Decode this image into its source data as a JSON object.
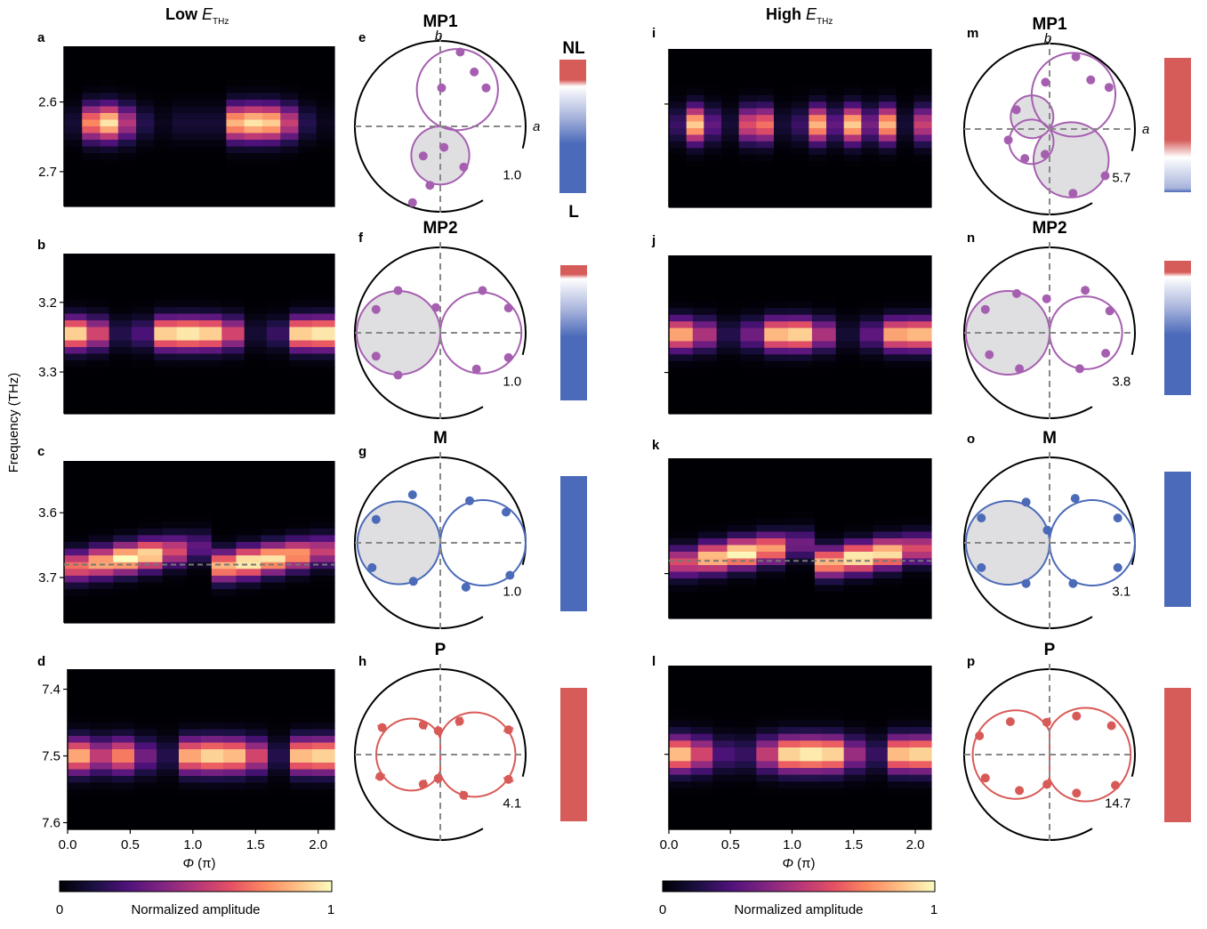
{
  "columns": {
    "low": {
      "prefix": "Low ",
      "symbol": "E",
      "sub": "THz"
    },
    "high": {
      "prefix": "High ",
      "symbol": "E",
      "sub": "THz"
    }
  },
  "ylabel": "Frequency (THz)",
  "xlabel": {
    "symbol": "Φ",
    "unit": " (π)"
  },
  "x_ticks": [
    "0.0",
    "0.5",
    "1.0",
    "1.5",
    "2.0"
  ],
  "x_tick_values": [
    0,
    0.5,
    1.0,
    1.5,
    2.0
  ],
  "xlim": [
    0,
    2.13
  ],
  "colorbar": {
    "min": "0",
    "max": "1",
    "label": "Normalized amplitude"
  },
  "mode_bar_labels": {
    "top": "NL",
    "bottom": "L"
  },
  "colors": {
    "purple": "#a65fb0",
    "blue": "#4b6ab8",
    "red": "#d85a57",
    "fill": "#dfdfe2",
    "bar_blue": "#4b6ab9",
    "bar_red": "#d65c5a"
  },
  "chart_data": [
    {
      "panel": "a",
      "type": "heatmap",
      "column": "low",
      "ylim": [
        2.52,
        2.75
      ],
      "y_ticks": [
        "2.6",
        "2.7"
      ],
      "y_tick_values": [
        2.6,
        2.7
      ],
      "center": 2.63,
      "width": 0.025,
      "modulation": [
        0.1,
        0.75,
        0.95,
        0.5,
        0.15,
        0.05,
        0.1,
        0.1,
        0.1,
        0.85,
        0.95,
        0.9,
        0.55,
        0.15,
        0.05
      ],
      "drift": 0
    },
    {
      "panel": "b",
      "type": "heatmap",
      "column": "low",
      "ylim": [
        3.13,
        3.36
      ],
      "y_ticks": [
        "3.2",
        "3.3"
      ],
      "y_tick_values": [
        3.2,
        3.3
      ],
      "center": 3.245,
      "width": 0.022,
      "modulation": [
        0.95,
        0.6,
        0.15,
        0.25,
        0.95,
        1.0,
        0.95,
        0.6,
        0.1,
        0.2,
        0.95,
        1.0
      ],
      "drift": 0
    },
    {
      "panel": "c",
      "type": "heatmap",
      "column": "low",
      "ylim": [
        3.52,
        3.77
      ],
      "y_ticks": [
        "3.6",
        "3.7"
      ],
      "y_tick_values": [
        3.6,
        3.7
      ],
      "center": 3.665,
      "width": 0.022,
      "modulation": [
        0.7,
        0.85,
        1.0,
        0.95,
        0.6,
        0.3,
        0.85,
        1.0,
        0.95,
        0.8,
        0.55
      ],
      "drift": -0.035,
      "dashed_y": 3.68
    },
    {
      "panel": "d",
      "type": "heatmap",
      "column": "low",
      "ylim": [
        7.37,
        7.61
      ],
      "y_ticks": [
        "7.4",
        "7.5",
        "7.6"
      ],
      "y_tick_values": [
        7.4,
        7.5,
        7.6
      ],
      "center": 7.5,
      "width": 0.025,
      "modulation": [
        0.85,
        0.55,
        0.75,
        0.35,
        0.15,
        0.85,
        0.95,
        0.9,
        0.6,
        0.15,
        0.9,
        0.95
      ],
      "drift": 0
    },
    {
      "panel": "i",
      "type": "heatmap",
      "column": "high",
      "ylim": [
        2.52,
        2.75
      ],
      "y_ticks": [],
      "y_tick_values": [
        2.6
      ],
      "center": 2.63,
      "width": 0.025,
      "modulation": [
        0.2,
        0.9,
        0.3,
        0.1,
        0.6,
        0.7,
        0.1,
        0.2,
        0.85,
        0.3,
        0.9,
        0.35,
        0.85,
        0.1,
        0.55
      ],
      "drift": 0
    },
    {
      "panel": "j",
      "type": "heatmap",
      "column": "high",
      "ylim": [
        3.13,
        3.36
      ],
      "y_ticks": [],
      "y_tick_values": [
        3.3
      ],
      "center": 3.245,
      "width": 0.022,
      "modulation": [
        0.85,
        0.5,
        0.15,
        0.35,
        0.9,
        0.95,
        0.5,
        0.1,
        0.3,
        0.85,
        0.9
      ],
      "drift": 0
    },
    {
      "panel": "k",
      "type": "heatmap",
      "column": "high",
      "ylim": [
        3.52,
        3.77
      ],
      "y_ticks": [],
      "y_tick_values": [
        3.7
      ],
      "center": 3.665,
      "width": 0.022,
      "modulation": [
        0.6,
        0.9,
        1.0,
        0.8,
        0.35,
        0.85,
        1.0,
        0.95,
        0.6
      ],
      "drift": -0.035,
      "dashed_y": 3.68
    },
    {
      "panel": "l",
      "type": "heatmap",
      "column": "high",
      "ylim": [
        7.37,
        7.61
      ],
      "y_ticks": [],
      "y_tick_values": [
        7.5
      ],
      "center": 7.5,
      "width": 0.025,
      "modulation": [
        0.9,
        0.6,
        0.25,
        0.2,
        0.55,
        0.95,
        1.0,
        0.95,
        0.45,
        0.2,
        0.9,
        0.95
      ],
      "drift": 0
    },
    {
      "panel": "e",
      "type": "polar",
      "title": "MP1",
      "scale": "1.0",
      "color": "purple",
      "axis_labels": {
        "b": "b",
        "a": "a"
      },
      "lobes": [
        {
          "angle_deg": 270,
          "len": 0.68,
          "filled": true
        },
        {
          "angle_deg": 65,
          "len": 0.95,
          "filled": false
        }
      ],
      "data": [
        [
          88,
          0.45
        ],
        [
          75,
          0.9
        ],
        [
          58,
          0.75
        ],
        [
          40,
          0.7
        ],
        [
          -100,
          0.7
        ],
        [
          -60,
          0.55
        ],
        [
          -120,
          0.4
        ],
        [
          -80,
          0.25
        ],
        [
          -110,
          0.95
        ]
      ],
      "mode_bar": "NL_L",
      "mode_bar_fraction": 0.18
    },
    {
      "panel": "f",
      "type": "polar",
      "title": "MP2",
      "scale": "1.0",
      "color": "purple",
      "lobes": [
        {
          "angle_deg": 180,
          "len": 0.98,
          "filled": true
        },
        {
          "angle_deg": 0,
          "len": 0.95,
          "filled": false
        }
      ],
      "data": [
        [
          160,
          0.8
        ],
        [
          135,
          0.7
        ],
        [
          200,
          0.8
        ],
        [
          225,
          0.7
        ],
        [
          100,
          0.3
        ],
        [
          20,
          0.85
        ],
        [
          45,
          0.7
        ],
        [
          340,
          0.85
        ],
        [
          315,
          0.6
        ]
      ],
      "mode_bar": "NL_L",
      "mode_bar_fraction": 0.08
    },
    {
      "panel": "g",
      "type": "polar",
      "title": "M",
      "scale": "1.0",
      "color": "blue",
      "lobes": [
        {
          "angle_deg": 180,
          "len": 0.97,
          "filled": true
        },
        {
          "angle_deg": 0,
          "len": 1.0,
          "filled": false
        }
      ],
      "data": [
        [
          160,
          0.8
        ],
        [
          120,
          0.65
        ],
        [
          200,
          0.85
        ],
        [
          235,
          0.55
        ],
        [
          25,
          0.85
        ],
        [
          55,
          0.6
        ],
        [
          335,
          0.9
        ],
        [
          300,
          0.6
        ]
      ],
      "mode_bar": "L",
      "mode_bar_fraction": 0
    },
    {
      "panel": "h",
      "type": "polar",
      "title": "P",
      "scale": "4.1",
      "color": "red",
      "lobes": [
        {
          "angle_deg": 180,
          "len": 0.75,
          "filled": false,
          "waist": 0.25
        },
        {
          "angle_deg": 0,
          "len": 0.88,
          "filled": false,
          "waist": 0.25
        }
      ],
      "data": [
        [
          155,
          0.75
        ],
        [
          120,
          0.4
        ],
        [
          200,
          0.75
        ],
        [
          240,
          0.4
        ],
        [
          20,
          0.85
        ],
        [
          60,
          0.45
        ],
        [
          340,
          0.85
        ],
        [
          300,
          0.55
        ],
        [
          95,
          0.28
        ],
        [
          265,
          0.28
        ]
      ],
      "error_bars": true,
      "mode_bar": "NL",
      "mode_bar_fraction": 1
    },
    {
      "panel": "m",
      "type": "polar",
      "title": "MP1",
      "scale": "5.7",
      "color": "purple",
      "axis_labels": {
        "b": "b",
        "a": "a"
      },
      "lobes": [
        {
          "angle_deg": 305,
          "len": 0.88,
          "filled": true
        },
        {
          "angle_deg": 145,
          "len": 0.5,
          "filled": true
        },
        {
          "angle_deg": 55,
          "len": 0.98,
          "filled": false
        },
        {
          "angle_deg": 215,
          "len": 0.52,
          "filled": false
        }
      ],
      "data": [
        [
          70,
          0.9
        ],
        [
          50,
          0.75
        ],
        [
          35,
          0.85
        ],
        [
          150,
          0.45
        ],
        [
          195,
          0.5
        ],
        [
          230,
          0.45
        ],
        [
          290,
          0.8
        ],
        [
          320,
          0.85
        ],
        [
          95,
          0.55
        ],
        [
          260,
          0.3
        ]
      ],
      "mode_bar": "NL_L",
      "mode_bar_fraction": 0.72
    },
    {
      "panel": "n",
      "type": "polar",
      "title": "MP2",
      "scale": "3.8",
      "color": "purple",
      "lobes": [
        {
          "angle_deg": 180,
          "len": 0.98,
          "filled": true
        },
        {
          "angle_deg": 0,
          "len": 0.85,
          "filled": false
        }
      ],
      "data": [
        [
          160,
          0.8
        ],
        [
          130,
          0.6
        ],
        [
          200,
          0.75
        ],
        [
          230,
          0.55
        ],
        [
          95,
          0.4
        ],
        [
          20,
          0.75
        ],
        [
          50,
          0.65
        ],
        [
          340,
          0.7
        ],
        [
          310,
          0.55
        ]
      ],
      "mode_bar": "NL_L",
      "mode_bar_fraction": 0.1
    },
    {
      "panel": "o",
      "type": "polar",
      "title": "M",
      "scale": "3.1",
      "color": "blue",
      "lobes": [
        {
          "angle_deg": 180,
          "len": 0.98,
          "filled": true
        },
        {
          "angle_deg": 0,
          "len": 1.0,
          "filled": false
        }
      ],
      "data": [
        [
          160,
          0.85
        ],
        [
          120,
          0.55
        ],
        [
          200,
          0.85
        ],
        [
          240,
          0.55
        ],
        [
          20,
          0.85
        ],
        [
          60,
          0.6
        ],
        [
          340,
          0.85
        ],
        [
          300,
          0.55
        ],
        [
          100,
          0.15
        ]
      ],
      "mode_bar": "L",
      "mode_bar_fraction": 0
    },
    {
      "panel": "p",
      "type": "polar",
      "title": "P",
      "scale": "14.7",
      "color": "red",
      "lobes": [
        {
          "angle_deg": 180,
          "len": 0.9,
          "filled": false,
          "waist": 0.3
        },
        {
          "angle_deg": 0,
          "len": 0.95,
          "filled": false,
          "waist": 0.3
        }
      ],
      "data": [
        [
          165,
          0.85
        ],
        [
          140,
          0.6
        ],
        [
          200,
          0.8
        ],
        [
          230,
          0.55
        ],
        [
          25,
          0.8
        ],
        [
          55,
          0.55
        ],
        [
          335,
          0.85
        ],
        [
          305,
          0.55
        ],
        [
          95,
          0.38
        ],
        [
          265,
          0.35
        ]
      ],
      "mode_bar": "NL",
      "mode_bar_fraction": 1
    }
  ]
}
